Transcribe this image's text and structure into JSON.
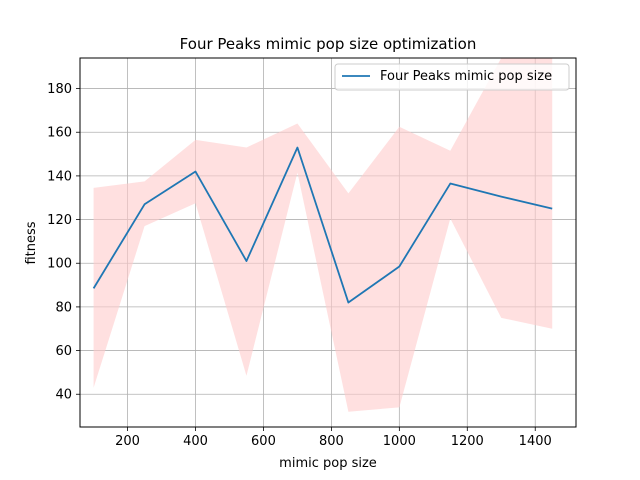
{
  "chart_data": {
    "type": "line",
    "title": "Four Peaks mimic pop size optimization",
    "xlabel": "mimic pop size",
    "ylabel": "fitness",
    "xlim": [
      60,
      1520
    ],
    "ylim": [
      25,
      194
    ],
    "xticks": [
      200,
      400,
      600,
      800,
      1000,
      1200,
      1400
    ],
    "yticks": [
      40,
      60,
      80,
      100,
      120,
      140,
      160,
      180
    ],
    "grid": true,
    "legend_position": "top-right",
    "x": [
      100,
      250,
      400,
      550,
      700,
      850,
      1000,
      1150,
      1300,
      1450
    ],
    "series": [
      {
        "name": "Four Peaks mimic pop size",
        "color": "#1f77b4",
        "values": [
          88.5,
          127,
          142,
          101,
          153,
          82,
          98.5,
          136.5,
          130.5,
          125
        ],
        "band_upper": [
          134.5,
          137.5,
          156.5,
          153,
          164,
          132,
          162.5,
          151.5,
          194,
          194
        ],
        "band_lower": [
          43,
          117,
          127.5,
          48.5,
          141.5,
          32,
          34,
          120.5,
          75,
          70
        ]
      }
    ],
    "band_color": "#ffcccc"
  }
}
